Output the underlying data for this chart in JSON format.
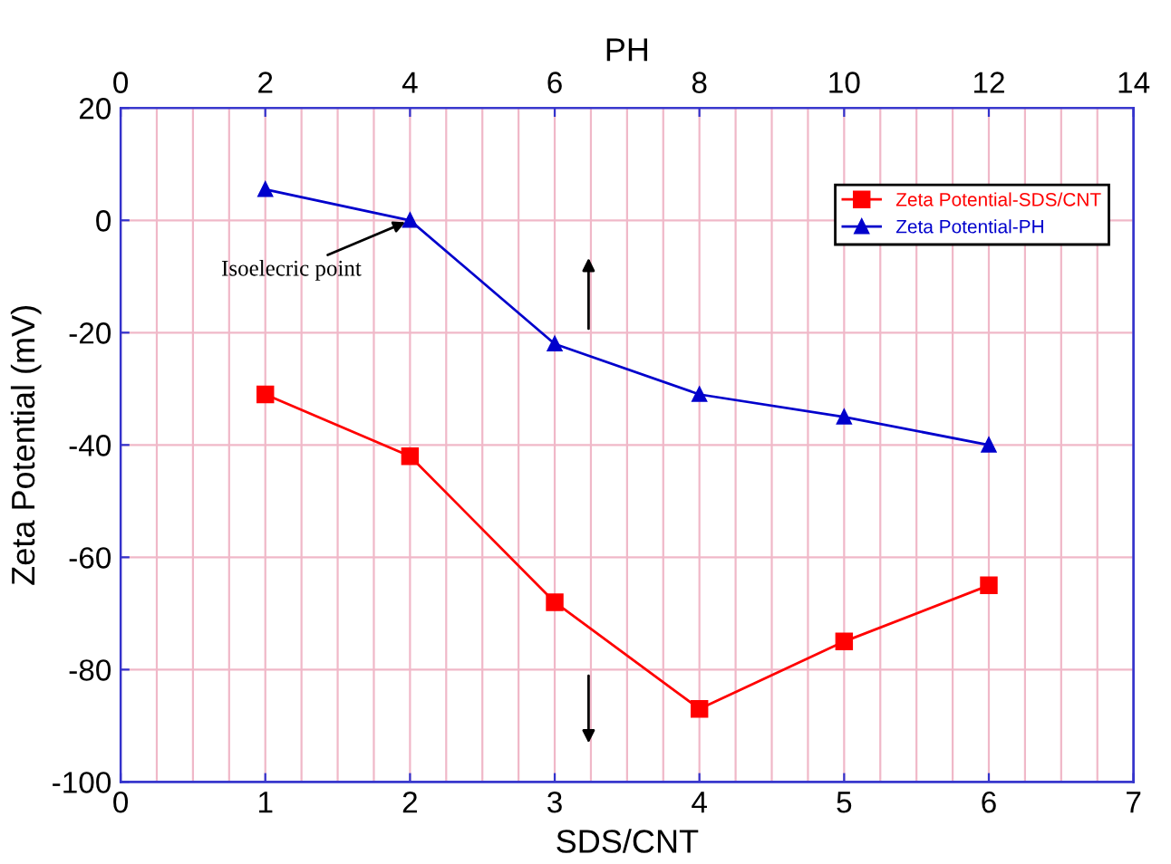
{
  "chart_data": {
    "type": "line",
    "xlabel": "SDS/CNT",
    "x2label": "PH",
    "ylabel": "Zeta Potential (mV)",
    "xlim": [
      0,
      7
    ],
    "xticks": [
      0,
      1,
      2,
      3,
      4,
      5,
      6,
      7
    ],
    "x2lim": [
      0,
      14
    ],
    "x2ticks": [
      0,
      2,
      4,
      6,
      8,
      10,
      12,
      14
    ],
    "ylim": [
      -100,
      20
    ],
    "yticks": [
      -100,
      -80,
      -60,
      -40,
      -20,
      0,
      20
    ],
    "grid": true,
    "legend": "top right",
    "line_style": "solid",
    "series": [
      {
        "name": "Zeta Potential-SDS/CNT",
        "color": "#ff0000",
        "marker": "square",
        "x": [
          1,
          2,
          3,
          4,
          5,
          6
        ],
        "values": [
          -31,
          -42,
          -68,
          -87,
          -75,
          -65
        ]
      },
      {
        "name": "Zeta Potential-PH",
        "color": "#0000cc",
        "marker": "triangle",
        "axis": "x2",
        "x": [
          2,
          4,
          6,
          8,
          10,
          12
        ],
        "values": [
          5.5,
          0,
          -22,
          -31,
          -35,
          -40
        ]
      }
    ],
    "annotations": [
      {
        "text": "Isoelecric point",
        "x": 2,
        "y": 0
      }
    ]
  }
}
